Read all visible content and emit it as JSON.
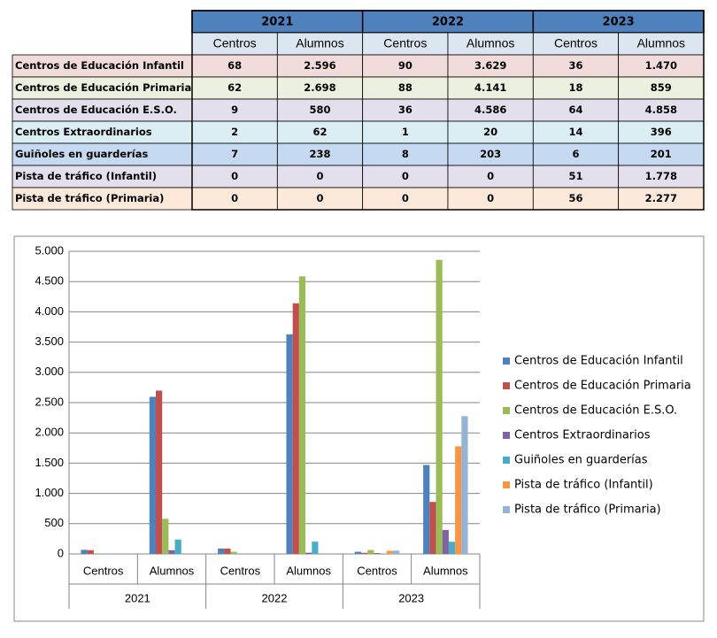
{
  "table": {
    "years": [
      "2021",
      "2022",
      "2023"
    ],
    "subheaders": [
      "Centros",
      "Alumnos",
      "Centros",
      "Alumnos",
      "Centros",
      "Alumnos"
    ],
    "rows": [
      {
        "label": "Centros de Educación Infantil",
        "cells": [
          "68",
          "2.596",
          "90",
          "3.629",
          "36",
          "1.470"
        ]
      },
      {
        "label": "Centros de Educación Primaria",
        "cells": [
          "62",
          "2.698",
          "88",
          "4.141",
          "18",
          "859"
        ]
      },
      {
        "label": "Centros de Educación E.S.O.",
        "cells": [
          "9",
          "580",
          "36",
          "4.586",
          "64",
          "4.858"
        ]
      },
      {
        "label": "Centros Extraordinarios",
        "cells": [
          "2",
          "62",
          "1",
          "20",
          "14",
          "396"
        ]
      },
      {
        "label": "Guiñoles en guarderías",
        "cells": [
          "7",
          "238",
          "8",
          "203",
          "6",
          "201"
        ]
      },
      {
        "label": "Pista de tráfico (Infantil)",
        "cells": [
          "0",
          "0",
          "0",
          "0",
          "51",
          "1.778"
        ]
      },
      {
        "label": "Pista de tráfico (Primaria)",
        "cells": [
          "0",
          "0",
          "0",
          "0",
          "56",
          "2.277"
        ]
      }
    ]
  },
  "chart_data": {
    "type": "bar",
    "categories": [
      "Centros",
      "Alumnos",
      "Centros",
      "Alumnos",
      "Centros",
      "Alumnos"
    ],
    "groups": [
      "2021",
      "2022",
      "2023"
    ],
    "series": [
      {
        "name": "Centros de Educación Infantil",
        "color": "#4f81bd",
        "values": [
          68,
          2596,
          90,
          3629,
          36,
          1470
        ]
      },
      {
        "name": "Centros de Educación Primaria",
        "color": "#c0504d",
        "values": [
          62,
          2698,
          88,
          4141,
          18,
          859
        ]
      },
      {
        "name": "Centros de Educación E.S.O.",
        "color": "#9bbb59",
        "values": [
          9,
          580,
          36,
          4586,
          64,
          4858
        ]
      },
      {
        "name": "Centros Extraordinarios",
        "color": "#8064a2",
        "values": [
          2,
          62,
          1,
          20,
          14,
          396
        ]
      },
      {
        "name": "Guiñoles en guarderías",
        "color": "#4bacc6",
        "values": [
          7,
          238,
          8,
          203,
          6,
          201
        ]
      },
      {
        "name": "Pista de tráfico (Infantil)",
        "color": "#f79646",
        "values": [
          0,
          0,
          0,
          0,
          51,
          1778
        ]
      },
      {
        "name": "Pista de tráfico (Primaria)",
        "color": "#95b3d7",
        "values": [
          0,
          0,
          0,
          0,
          56,
          2277
        ]
      }
    ],
    "ylim": [
      0,
      5000
    ],
    "yticks": [
      0,
      500,
      {
        "value": 1000,
        "label": "1.000"
      },
      {
        "value": 1500,
        "label": "1.500"
      },
      {
        "value": 2000,
        "label": "2.000"
      },
      {
        "value": 2500,
        "label": "2.500"
      },
      {
        "value": 3000,
        "label": "3.000"
      },
      {
        "value": 3500,
        "label": "3.500"
      },
      {
        "value": 4000,
        "label": "4.000"
      },
      {
        "value": 4500,
        "label": "4.500"
      },
      {
        "value": 5000,
        "label": "5.000"
      }
    ],
    "grid": true,
    "legend": "right"
  }
}
